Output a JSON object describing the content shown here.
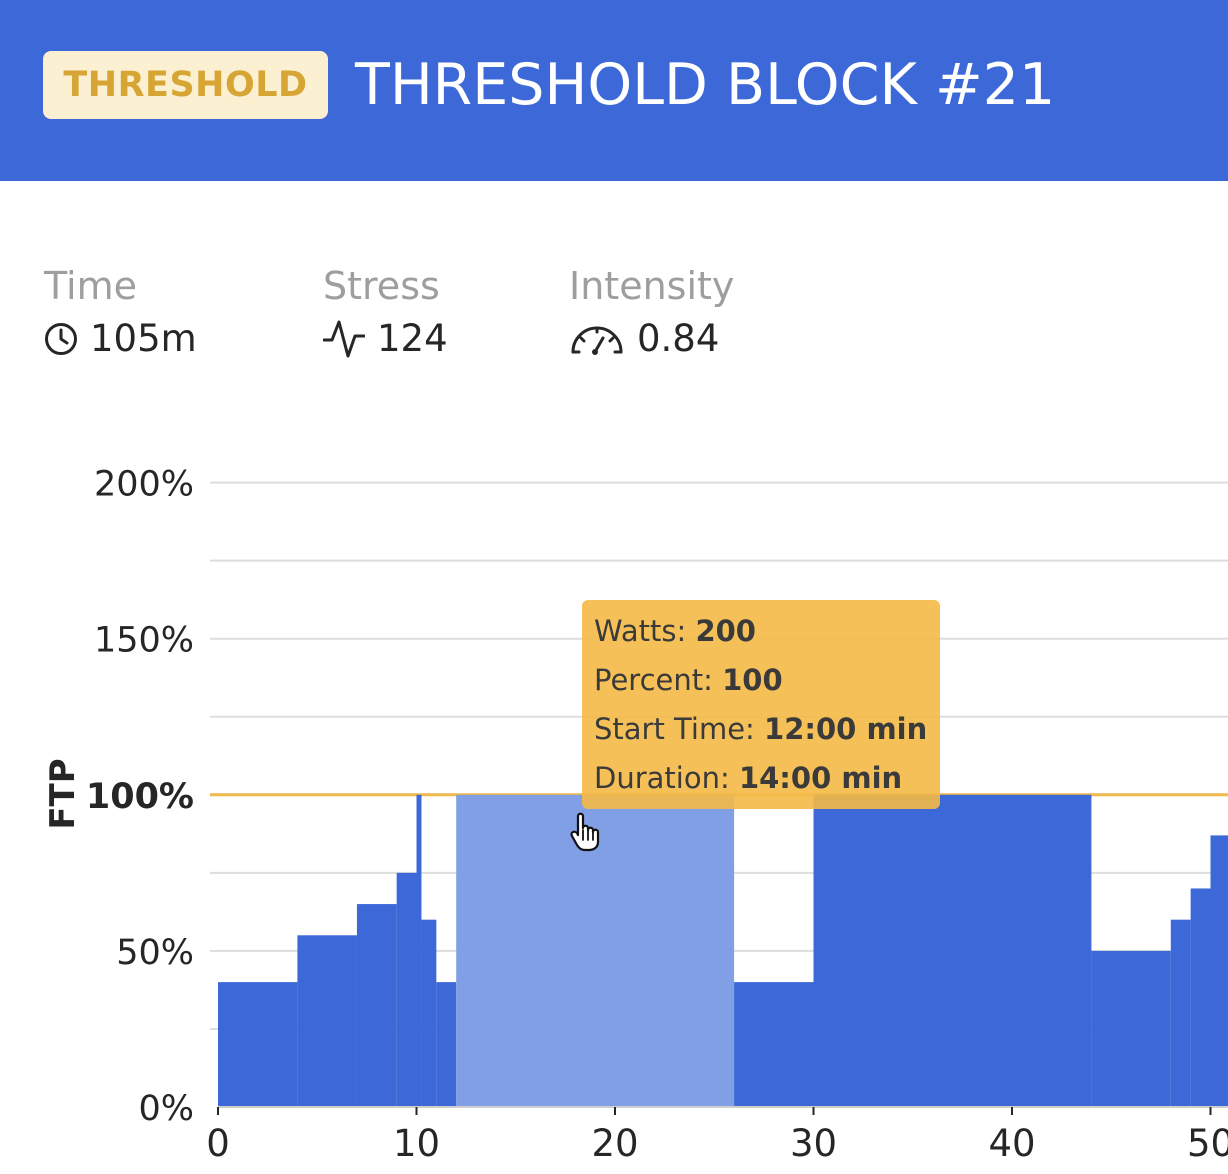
{
  "header": {
    "badge": "THRESHOLD",
    "title": "THRESHOLD BLOCK #21"
  },
  "stats": {
    "time": {
      "label": "Time",
      "value": "105m",
      "icon": "clock-icon"
    },
    "stress": {
      "label": "Stress",
      "value": "124",
      "icon": "pulse-icon"
    },
    "intensity": {
      "label": "Intensity",
      "value": "0.84",
      "icon": "speedometer-icon"
    }
  },
  "colors": {
    "header": "#3c68d8",
    "bar": "#3c68d8",
    "bar_selected": "#819fe5",
    "ftp_line": "#f0b94a",
    "badge_bg": "#fcf0d2",
    "badge_text": "#d7a533",
    "tooltip": "#f4b946"
  },
  "tooltip": {
    "watts_label": "Watts:",
    "watts_value": "200",
    "percent_label": "Percent:",
    "percent_value": "100",
    "start_label": "Start Time:",
    "start_value": "12:00 min",
    "duration_label": "Duration:",
    "duration_value": "14:00 min"
  },
  "chart_data": {
    "type": "area",
    "ylabel": "FTP",
    "xlabel": "",
    "ylim": [
      0,
      200
    ],
    "xlim": [
      0,
      50
    ],
    "yticks": [
      "0%",
      "50%",
      "100%",
      "150%",
      "200%"
    ],
    "xticks": [
      "0",
      "10",
      "20",
      "30",
      "40",
      "50"
    ],
    "grid": true,
    "ftp_reference": 100,
    "selected_segment": 7,
    "segments": [
      {
        "start": 0,
        "duration": 4,
        "percent": 40
      },
      {
        "start": 4,
        "duration": 3,
        "percent": 55
      },
      {
        "start": 7,
        "duration": 2,
        "percent": 65
      },
      {
        "start": 9,
        "duration": 1,
        "percent": 75
      },
      {
        "start": 10,
        "duration": 0.25,
        "percent": 100
      },
      {
        "start": 10.25,
        "duration": 0.75,
        "percent": 60
      },
      {
        "start": 11,
        "duration": 1,
        "percent": 40
      },
      {
        "start": 12,
        "duration": 14,
        "percent": 100
      },
      {
        "start": 26,
        "duration": 4,
        "percent": 40
      },
      {
        "start": 30,
        "duration": 14,
        "percent": 100
      },
      {
        "start": 44,
        "duration": 4,
        "percent": 50
      },
      {
        "start": 48,
        "duration": 1,
        "percent": 60
      },
      {
        "start": 49,
        "duration": 1,
        "percent": 70
      },
      {
        "start": 50,
        "duration": 1,
        "percent": 87
      }
    ]
  }
}
